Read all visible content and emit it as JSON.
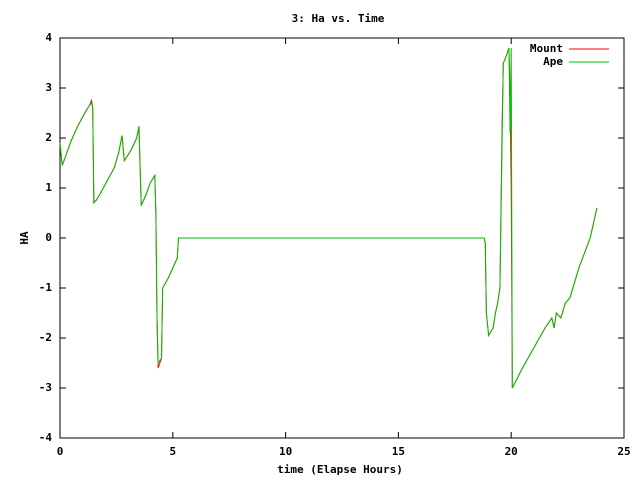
{
  "chart_data": {
    "type": "line",
    "title": "3: Ha vs. Time",
    "xlabel": "time (Elapse Hours)",
    "ylabel": "HA",
    "x": [
      0,
      0.1,
      0.3,
      0.5,
      0.8,
      1.1,
      1.3,
      1.4,
      1.45,
      1.5,
      1.6,
      1.8,
      2.1,
      2.4,
      2.6,
      2.75,
      2.85,
      3.0,
      3.2,
      3.4,
      3.5,
      3.6,
      3.8,
      4.0,
      4.2,
      4.25,
      4.3,
      4.35,
      4.5,
      4.55,
      4.8,
      5.0,
      5.2,
      5.25,
      18.8,
      18.85,
      18.9,
      19.0,
      19.2,
      19.3,
      19.4,
      19.5,
      19.6,
      19.65,
      19.75,
      19.9,
      19.95,
      20.0,
      20.05,
      20.5,
      21.0,
      21.5,
      21.8,
      21.9,
      22.0,
      22.2,
      22.4,
      22.6,
      23.0,
      23.5,
      23.8
    ],
    "series": [
      {
        "name": "Mount",
        "color": "#ff0000",
        "values": [
          1.9,
          1.45,
          1.7,
          1.95,
          2.25,
          2.5,
          2.65,
          2.75,
          2.6,
          0.72,
          0.75,
          0.9,
          1.15,
          1.4,
          1.7,
          2.05,
          1.55,
          1.65,
          1.8,
          2.0,
          2.22,
          0.65,
          0.85,
          1.1,
          1.25,
          0.5,
          -1.6,
          -2.6,
          -2.4,
          -1.0,
          -0.8,
          -0.6,
          -0.4,
          0,
          0,
          -0.1,
          -1.5,
          -1.95,
          -1.8,
          -1.5,
          -1.3,
          -1.0,
          2.35,
          3.5,
          3.6,
          3.8,
          2.9,
          1.0,
          -3.0,
          -2.6,
          -2.2,
          -1.8,
          -1.6,
          -1.8,
          -1.5,
          -1.6,
          -1.3,
          -1.2,
          -0.6,
          0.0,
          0.6
        ]
      },
      {
        "name": "Ape",
        "color": "#00c000",
        "values": [
          1.9,
          1.45,
          1.7,
          1.95,
          2.25,
          2.5,
          2.65,
          2.7,
          2.6,
          0.7,
          0.75,
          0.9,
          1.15,
          1.4,
          1.7,
          2.05,
          1.55,
          1.65,
          1.8,
          2.0,
          2.24,
          0.65,
          0.85,
          1.1,
          1.25,
          0.5,
          -1.6,
          -2.5,
          -2.4,
          -1.0,
          -0.8,
          -0.6,
          -0.4,
          0,
          0,
          -0.1,
          -1.5,
          -1.95,
          -1.8,
          -1.5,
          -1.3,
          -1.0,
          2.0,
          3.5,
          3.6,
          3.8,
          2.1,
          3.8,
          -3.0,
          -2.6,
          -2.2,
          -1.8,
          -1.6,
          -1.8,
          -1.5,
          -1.6,
          -1.3,
          -1.2,
          -0.6,
          0.0,
          0.6
        ]
      }
    ],
    "xlim": [
      0,
      25
    ],
    "xticks": [
      0,
      5,
      10,
      15,
      20,
      25
    ],
    "ylim": [
      -4,
      4
    ],
    "yticks": [
      -4,
      -3,
      -2,
      -1,
      0,
      1,
      2,
      3,
      4
    ],
    "legend": "top-right"
  }
}
